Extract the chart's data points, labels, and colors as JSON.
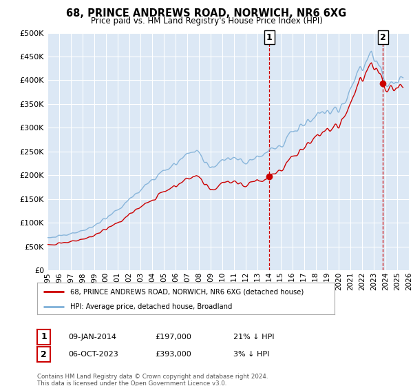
{
  "title": "68, PRINCE ANDREWS ROAD, NORWICH, NR6 6XG",
  "subtitle": "Price paid vs. HM Land Registry's House Price Index (HPI)",
  "background_color": "#ffffff",
  "plot_bg_color": "#dce8f5",
  "grid_color": "#ffffff",
  "hpi_color": "#7fb0d8",
  "price_color": "#cc0000",
  "ylim": [
    0,
    500000
  ],
  "yticks": [
    0,
    50000,
    100000,
    150000,
    200000,
    250000,
    300000,
    350000,
    400000,
    450000,
    500000
  ],
  "ytick_labels": [
    "£0",
    "£50K",
    "£100K",
    "£150K",
    "£200K",
    "£250K",
    "£300K",
    "£350K",
    "£400K",
    "£450K",
    "£500K"
  ],
  "xlim_start": 1995.0,
  "xlim_end": 2026.0,
  "xticks": [
    1995,
    1996,
    1997,
    1998,
    1999,
    2000,
    2001,
    2002,
    2003,
    2004,
    2005,
    2006,
    2007,
    2008,
    2009,
    2010,
    2011,
    2012,
    2013,
    2014,
    2015,
    2016,
    2017,
    2018,
    2019,
    2020,
    2021,
    2022,
    2023,
    2024,
    2025,
    2026
  ],
  "sale1_x": 2014.03,
  "sale1_y": 197000,
  "sale1_label": "1",
  "sale2_x": 2023.77,
  "sale2_y": 393000,
  "sale2_label": "2",
  "legend_label_price": "68, PRINCE ANDREWS ROAD, NORWICH, NR6 6XG (detached house)",
  "legend_label_hpi": "HPI: Average price, detached house, Broadland",
  "annotation1_date": "09-JAN-2014",
  "annotation1_price": "£197,000",
  "annotation1_hpi": "21% ↓ HPI",
  "annotation2_date": "06-OCT-2023",
  "annotation2_price": "£393,000",
  "annotation2_hpi": "3% ↓ HPI",
  "footer": "Contains HM Land Registry data © Crown copyright and database right 2024.\nThis data is licensed under the Open Government Licence v3.0."
}
